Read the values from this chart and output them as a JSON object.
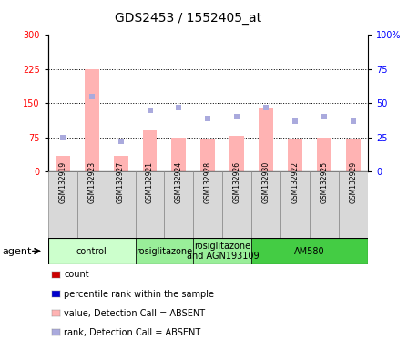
{
  "title": "GDS2453 / 1552405_at",
  "samples": [
    "GSM132919",
    "GSM132923",
    "GSM132927",
    "GSM132921",
    "GSM132924",
    "GSM132928",
    "GSM132926",
    "GSM132930",
    "GSM132922",
    "GSM132925",
    "GSM132929"
  ],
  "bar_values": [
    35,
    225,
    35,
    90,
    75,
    72,
    78,
    140,
    72,
    75,
    70
  ],
  "rank_values": [
    25,
    55,
    22,
    45,
    47,
    39,
    40,
    47,
    37,
    40,
    37
  ],
  "bar_color_absent": "#ffb3b3",
  "rank_color_absent": "#aaaadd",
  "left_ylim": [
    0,
    300
  ],
  "right_ylim": [
    0,
    100
  ],
  "left_yticks": [
    0,
    75,
    150,
    225,
    300
  ],
  "right_yticks": [
    0,
    25,
    50,
    75,
    100
  ],
  "hlines": [
    75,
    150,
    225
  ],
  "agent_groups": [
    {
      "label": "control",
      "start": 0,
      "end": 3,
      "color": "#ccffcc"
    },
    {
      "label": "rosiglitazone",
      "start": 3,
      "end": 5,
      "color": "#99ee99"
    },
    {
      "label": "rosiglitazone\nand AGN193109",
      "start": 5,
      "end": 7,
      "color": "#99ee99"
    },
    {
      "label": "AM580",
      "start": 7,
      "end": 11,
      "color": "#44cc44"
    }
  ],
  "legend_items": [
    {
      "label": "count",
      "color": "#cc0000"
    },
    {
      "label": "percentile rank within the sample",
      "color": "#0000cc"
    },
    {
      "label": "value, Detection Call = ABSENT",
      "color": "#ffb3b3"
    },
    {
      "label": "rank, Detection Call = ABSENT",
      "color": "#aaaadd"
    }
  ],
  "agent_label": "agent",
  "bar_width": 0.5,
  "title_fontsize": 10,
  "tick_fontsize": 7,
  "sample_fontsize": 5.5,
  "legend_fontsize": 7,
  "agent_fontsize": 7
}
